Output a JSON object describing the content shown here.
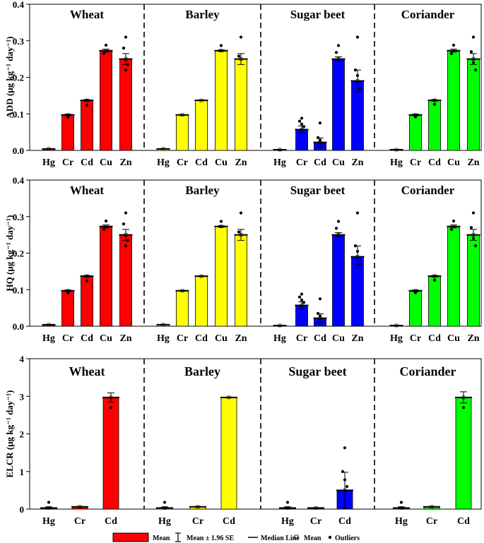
{
  "figure": {
    "legend": {
      "mean_label": "Mean",
      "se_label": "Mean ± 1.96 SE",
      "median_label": "Median Line",
      "mean_point_label": "Mean",
      "outliers_label": "Outliers"
    }
  },
  "chart_data": [
    {
      "type": "bar",
      "ylabel": "ADD (μg kg⁻¹ day⁻¹)",
      "ylim": [
        0,
        0.4
      ],
      "yticks": [
        "0.0",
        "0.1",
        "0.2",
        "0.3",
        "0.4"
      ],
      "panels": [
        {
          "title": "Wheat",
          "color": "#ff0000",
          "categories": [
            "Hg",
            "Cr",
            "Cd",
            "Cu",
            "Zn"
          ],
          "values": [
            0.004,
            0.097,
            0.137,
            0.273,
            0.25
          ],
          "se": [
            0.001,
            0.002,
            0.002,
            0.004,
            0.015
          ],
          "outliers": [
            [],
            [
              0.091
            ],
            [
              0.124
            ],
            [
              0.288,
              0.265
            ],
            [
              0.31,
              0.28,
              0.22,
              0.235
            ]
          ]
        },
        {
          "title": "Barley",
          "color": "#ffff00",
          "categories": [
            "Hg",
            "Cr",
            "Cd",
            "Cu",
            "Zn"
          ],
          "values": [
            0.004,
            0.097,
            0.137,
            0.273,
            0.25
          ],
          "se": [
            0.001,
            0.001,
            0.001,
            0.002,
            0.015
          ],
          "outliers": [
            [],
            [],
            [],
            [
              0.287
            ],
            [
              0.31,
              0.258
            ]
          ]
        },
        {
          "title": "Sugar beet",
          "color": "#0000ff",
          "categories": [
            "Hg",
            "Cr",
            "Cd",
            "Cu",
            "Zn"
          ],
          "values": [
            0.002,
            0.057,
            0.022,
            0.25,
            0.19
          ],
          "se": [
            0.001,
            0.01,
            0.012,
            0.006,
            0.03
          ],
          "outliers": [
            [],
            [
              0.088,
              0.08,
              0.072,
              0.065
            ],
            [
              0.075,
              0.035,
              0.028
            ],
            [
              0.287,
              0.268
            ],
            [
              0.31,
              0.22,
              0.205,
              0.17
            ]
          ]
        },
        {
          "title": "Coriander",
          "color": "#00ff00",
          "categories": [
            "Hg",
            "Cr",
            "Cd",
            "Cu",
            "Zn"
          ],
          "values": [
            0.002,
            0.097,
            0.137,
            0.273,
            0.25
          ],
          "se": [
            0.001,
            0.002,
            0.002,
            0.004,
            0.015
          ],
          "outliers": [
            [],
            [
              0.092
            ],
            [
              0.126
            ],
            [
              0.288,
              0.265
            ],
            [
              0.31,
              0.27,
              0.24,
              0.22
            ]
          ]
        }
      ]
    },
    {
      "type": "bar",
      "ylabel": "HQ (μg kg⁻¹ day⁻¹)",
      "ylim": [
        0,
        0.4
      ],
      "yticks": [
        "0.0",
        "0.1",
        "0.2",
        "0.3",
        "0.4"
      ],
      "panels": [
        {
          "title": "Wheat",
          "color": "#ff0000",
          "categories": [
            "Hg",
            "Cr",
            "Cd",
            "Cu",
            "Zn"
          ],
          "values": [
            0.004,
            0.097,
            0.137,
            0.273,
            0.25
          ],
          "se": [
            0.001,
            0.002,
            0.002,
            0.004,
            0.015
          ],
          "outliers": [
            [],
            [
              0.091
            ],
            [
              0.124
            ],
            [
              0.288,
              0.265
            ],
            [
              0.31,
              0.28,
              0.22,
              0.235
            ]
          ]
        },
        {
          "title": "Barley",
          "color": "#ffff00",
          "categories": [
            "Hg",
            "Cr",
            "Cd",
            "Cu",
            "Zn"
          ],
          "values": [
            0.004,
            0.097,
            0.137,
            0.273,
            0.25
          ],
          "se": [
            0.001,
            0.001,
            0.001,
            0.002,
            0.015
          ],
          "outliers": [
            [],
            [],
            [],
            [
              0.287
            ],
            [
              0.31,
              0.258
            ]
          ]
        },
        {
          "title": "Sugar beet",
          "color": "#0000ff",
          "categories": [
            "Hg",
            "Cr",
            "Cd",
            "Cu",
            "Zn"
          ],
          "values": [
            0.002,
            0.057,
            0.022,
            0.25,
            0.19
          ],
          "se": [
            0.001,
            0.01,
            0.012,
            0.006,
            0.03
          ],
          "outliers": [
            [],
            [
              0.088,
              0.08,
              0.072,
              0.065
            ],
            [
              0.075,
              0.035,
              0.028
            ],
            [
              0.287,
              0.268
            ],
            [
              0.31,
              0.22,
              0.205,
              0.17
            ]
          ]
        },
        {
          "title": "Coriander",
          "color": "#00ff00",
          "categories": [
            "Hg",
            "Cr",
            "Cd",
            "Cu",
            "Zn"
          ],
          "values": [
            0.002,
            0.097,
            0.137,
            0.273,
            0.25
          ],
          "se": [
            0.001,
            0.002,
            0.002,
            0.004,
            0.015
          ],
          "outliers": [
            [],
            [
              0.092
            ],
            [
              0.126
            ],
            [
              0.288,
              0.265
            ],
            [
              0.31,
              0.27,
              0.24,
              0.22
            ]
          ]
        }
      ]
    },
    {
      "type": "bar",
      "ylabel": "ELCR (μg kg⁻¹ day⁻¹)",
      "ylim": [
        0,
        4
      ],
      "yticks": [
        "0",
        "1",
        "2",
        "3",
        "4"
      ],
      "panels": [
        {
          "title": "Wheat",
          "color": "#ff0000",
          "categories": [
            "Hg",
            "Cr",
            "Cd"
          ],
          "values": [
            0.03,
            0.06,
            2.97
          ],
          "se": [
            0.03,
            0.01,
            0.12
          ],
          "outliers": [
            [
              0.18
            ],
            [],
            [
              2.7
            ]
          ]
        },
        {
          "title": "Barley",
          "color": "#ffff00",
          "categories": [
            "Hg",
            "Cr",
            "Cd"
          ],
          "values": [
            0.03,
            0.06,
            2.97
          ],
          "se": [
            0.03,
            0.01,
            0.01
          ],
          "outliers": [
            [
              0.18
            ],
            [],
            []
          ]
        },
        {
          "title": "Sugar beet",
          "color": "#0000ff",
          "categories": [
            "Hg",
            "Cr",
            "Cd"
          ],
          "values": [
            0.03,
            0.03,
            0.5
          ],
          "se": [
            0.03,
            0.01,
            0.48
          ],
          "outliers": [
            [
              0.18
            ],
            [],
            [
              1.63,
              1.0,
              0.78,
              0.6
            ]
          ]
        },
        {
          "title": "Coriander",
          "color": "#00ff00",
          "categories": [
            "Hg",
            "Cr",
            "Cd"
          ],
          "values": [
            0.03,
            0.06,
            2.97
          ],
          "se": [
            0.03,
            0.01,
            0.15
          ],
          "outliers": [
            [
              0.18
            ],
            [],
            [
              2.7
            ]
          ]
        }
      ]
    }
  ]
}
